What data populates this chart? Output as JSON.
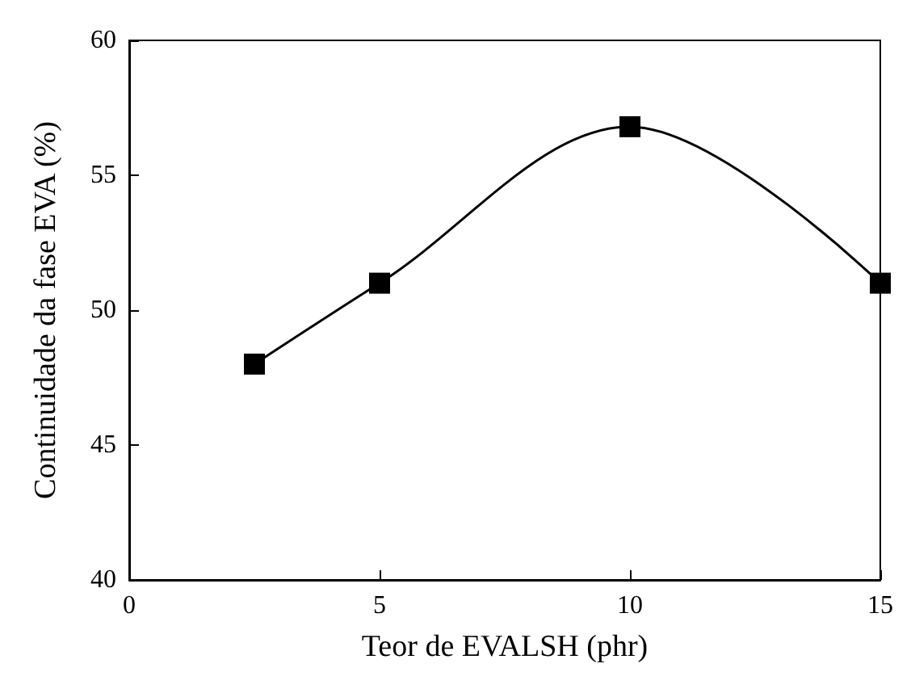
{
  "chart_data": {
    "type": "line",
    "xlabel": "Teor de EVALSH (phr)",
    "ylabel": "Continuidade da fase EVA (%)",
    "x": [
      2.5,
      5,
      10,
      15
    ],
    "series": [
      {
        "color": "#000000",
        "values": [
          48,
          51,
          56.8,
          51
        ]
      }
    ],
    "xlim": [
      0,
      15
    ],
    "xticks": [
      0,
      5,
      10,
      15
    ],
    "ylim": [
      40,
      60
    ],
    "yticks": [
      40,
      45,
      50,
      55,
      60
    ],
    "marker": "square",
    "line_style": "solid",
    "grid": false
  }
}
